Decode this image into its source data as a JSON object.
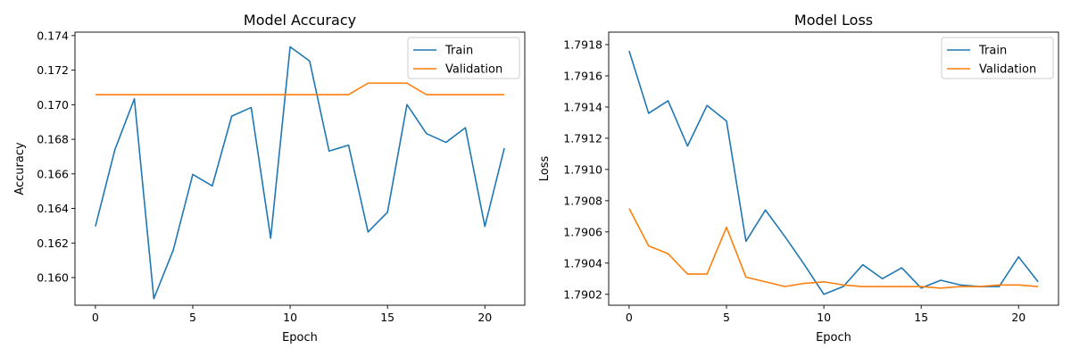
{
  "chart_data": [
    {
      "type": "line",
      "title": "Model Accuracy",
      "xlabel": "Epoch",
      "ylabel": "Accuracy",
      "xlim": [
        -1.05,
        22.05
      ],
      "ylim": [
        0.1584,
        0.1742
      ],
      "xticks": [
        0,
        5,
        10,
        15,
        20
      ],
      "xtick_labels": [
        "0",
        "5",
        "10",
        "15",
        "20"
      ],
      "yticks": [
        0.16,
        0.162,
        0.164,
        0.166,
        0.168,
        0.17,
        0.172,
        0.174
      ],
      "ytick_labels": [
        "0.160",
        "0.162",
        "0.164",
        "0.166",
        "0.168",
        "0.170",
        "0.172",
        "0.174"
      ],
      "legend_position": "top-right",
      "x": [
        0,
        1,
        2,
        3,
        4,
        5,
        6,
        7,
        8,
        9,
        10,
        11,
        12,
        13,
        14,
        15,
        16,
        17,
        18,
        19,
        20,
        21
      ],
      "series": [
        {
          "name": "Train",
          "color": "#1f77b4",
          "values": [
            0.16296,
            0.1674,
            0.17034,
            0.15878,
            0.1616,
            0.16597,
            0.1653,
            0.16934,
            0.16984,
            0.16228,
            0.17335,
            0.17253,
            0.16732,
            0.16766,
            0.16264,
            0.16378,
            0.17001,
            0.16833,
            0.16782,
            0.16867,
            0.16296,
            0.16749
          ]
        },
        {
          "name": "Validation",
          "color": "#ff7f0e",
          "values": [
            0.17058,
            0.17058,
            0.17058,
            0.17058,
            0.17058,
            0.17058,
            0.17058,
            0.17058,
            0.17058,
            0.17058,
            0.17058,
            0.17058,
            0.17058,
            0.17058,
            0.17125,
            0.17125,
            0.17125,
            0.17058,
            0.17058,
            0.17058,
            0.17058,
            0.17058
          ]
        }
      ]
    },
    {
      "type": "line",
      "title": "Model Loss",
      "xlabel": "Epoch",
      "ylabel": "Loss",
      "xlim": [
        -1.05,
        22.05
      ],
      "ylim": [
        1.79013,
        1.79188
      ],
      "xticks": [
        0,
        5,
        10,
        15,
        20
      ],
      "xtick_labels": [
        "0",
        "5",
        "10",
        "15",
        "20"
      ],
      "yticks": [
        1.7902,
        1.7904,
        1.7906,
        1.7908,
        1.791,
        1.7912,
        1.7914,
        1.7916,
        1.7918
      ],
      "ytick_labels": [
        "1.7902",
        "1.7904",
        "1.7906",
        "1.7908",
        "1.7910",
        "1.7912",
        "1.7914",
        "1.7916",
        "1.7918"
      ],
      "legend_position": "top-right",
      "x": [
        0,
        1,
        2,
        3,
        4,
        5,
        6,
        7,
        8,
        9,
        10,
        11,
        12,
        13,
        14,
        15,
        16,
        17,
        18,
        19,
        20,
        21
      ],
      "series": [
        {
          "name": "Train",
          "color": "#1f77b4",
          "values": [
            1.79176,
            1.79136,
            1.79144,
            1.79115,
            1.79141,
            1.79131,
            1.79054,
            1.79074,
            1.79057,
            1.79039,
            1.7902,
            1.79025,
            1.79039,
            1.7903,
            1.79037,
            1.79024,
            1.79029,
            1.79026,
            1.79025,
            1.79025,
            1.79044,
            1.79028
          ]
        },
        {
          "name": "Validation",
          "color": "#ff7f0e",
          "values": [
            1.79075,
            1.79051,
            1.79046,
            1.79033,
            1.79033,
            1.79063,
            1.79031,
            1.79028,
            1.79025,
            1.79027,
            1.79028,
            1.79026,
            1.79025,
            1.79025,
            1.79025,
            1.79025,
            1.79024,
            1.79025,
            1.79025,
            1.79026,
            1.79026,
            1.79025
          ]
        }
      ]
    }
  ]
}
